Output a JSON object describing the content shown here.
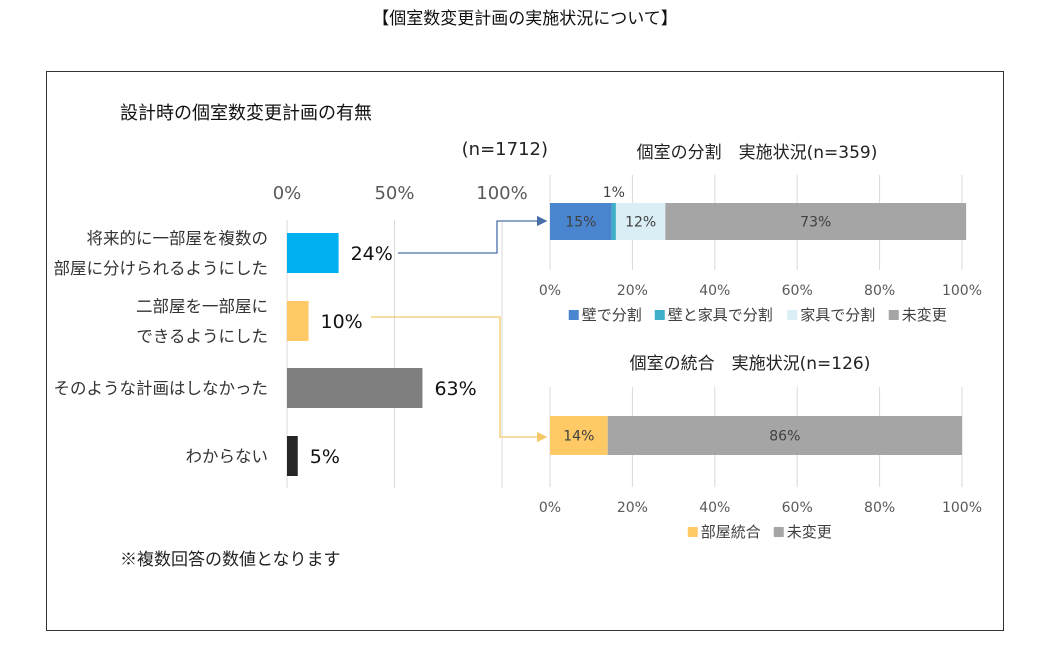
{
  "page_title": "【個室数変更計画の実施状況について】",
  "note": "※複数回答の数値となります",
  "chart_data": [
    {
      "type": "bar",
      "orientation": "horizontal",
      "title": "設計時の個室数変更計画の有無",
      "sample_size_label": "(n=1712)",
      "categories": [
        "将来的に一部屋を複数の部屋に分けられるようにした",
        "二部屋を一部屋にできるようにした",
        "そのような計画はしなかった",
        "わからない"
      ],
      "category_label_lines": [
        [
          "将来的に一部屋を複数の",
          "部屋に分けられるようにした"
        ],
        [
          "二部屋を一部屋に",
          "できるようにした"
        ],
        [
          "そのような計画はしなかった"
        ],
        [
          "わからない"
        ]
      ],
      "values": [
        24,
        10,
        63,
        5
      ],
      "value_labels": [
        "24%",
        "10%",
        "63%",
        "5%"
      ],
      "colors": [
        "#00b0f0",
        "#ffc966",
        "#7f7f7f",
        "#262626"
      ],
      "xlim": [
        0,
        100
      ],
      "xticks": [
        0,
        50,
        100
      ],
      "xtick_labels": [
        "0%",
        "50%",
        "100%"
      ],
      "grid": true,
      "note": "複数回答"
    },
    {
      "type": "bar",
      "stacked": true,
      "orientation": "horizontal",
      "title": "個室の分割　実施状況(n=359)",
      "series": [
        {
          "name": "壁で分割",
          "values": [
            15
          ],
          "label": "15%",
          "color": "#4a86d0"
        },
        {
          "name": "壁と家具で分割",
          "values": [
            1
          ],
          "label": "1%",
          "color": "#3eafc7"
        },
        {
          "name": "家具で分割",
          "values": [
            12
          ],
          "label": "12%",
          "color": "#daeef6"
        },
        {
          "name": "未変更",
          "values": [
            73
          ],
          "label": "73%",
          "color": "#a5a5a5"
        }
      ],
      "xlim": [
        0,
        100
      ],
      "xticks": [
        0,
        20,
        40,
        60,
        80,
        100
      ],
      "xtick_labels": [
        "0%",
        "20%",
        "40%",
        "60%",
        "80%",
        "100%"
      ],
      "legend": "bottom",
      "grid": true
    },
    {
      "type": "bar",
      "stacked": true,
      "orientation": "horizontal",
      "title": "個室の統合　実施状況(n=126)",
      "series": [
        {
          "name": "部屋統合",
          "values": [
            14
          ],
          "label": "14%",
          "color": "#ffc966"
        },
        {
          "name": "未変更",
          "values": [
            86
          ],
          "label": "86%",
          "color": "#a5a5a5"
        }
      ],
      "xlim": [
        0,
        100
      ],
      "xticks": [
        0,
        20,
        40,
        60,
        80,
        100
      ],
      "xtick_labels": [
        "0%",
        "20%",
        "40%",
        "60%",
        "80%",
        "100%"
      ],
      "legend": "bottom",
      "grid": true
    }
  ],
  "connectors": [
    {
      "from_category": 0,
      "to_chart": 1,
      "color": "#4a6fa8"
    },
    {
      "from_category": 1,
      "to_chart": 2,
      "color": "#f5c96a"
    }
  ]
}
